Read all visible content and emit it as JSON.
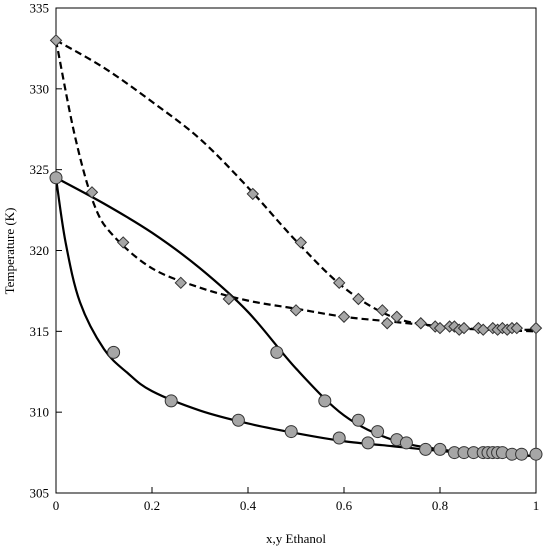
{
  "chart_data": {
    "type": "line",
    "title": "",
    "xlabel": "x,y Ethanol",
    "ylabel": "Temperature (K)",
    "xlim": [
      0,
      1
    ],
    "ylim": [
      305,
      335
    ],
    "x_ticks": [
      0,
      0.2,
      0.4,
      0.6,
      0.8,
      1
    ],
    "x_tick_labels": [
      "0",
      "0.2",
      "0.4",
      "0.6",
      "0.8",
      "1"
    ],
    "y_ticks": [
      305,
      310,
      315,
      320,
      325,
      330,
      335
    ],
    "y_tick_labels": [
      "305",
      "310",
      "315",
      "320",
      "325",
      "330",
      "335"
    ],
    "grid": false,
    "legend": "none",
    "series": [
      {
        "kind": "points",
        "marker": "diamond",
        "color": "#a6a6a6",
        "points": [
          [
            0.0,
            333.0
          ],
          [
            0.075,
            323.6
          ],
          [
            0.14,
            320.5
          ],
          [
            0.26,
            318.0
          ],
          [
            0.36,
            317.0
          ],
          [
            0.41,
            323.5
          ],
          [
            0.5,
            316.3
          ],
          [
            0.51,
            320.5
          ],
          [
            0.59,
            318.0
          ],
          [
            0.6,
            315.9
          ],
          [
            0.63,
            317.0
          ],
          [
            0.68,
            316.3
          ],
          [
            0.69,
            315.5
          ],
          [
            0.71,
            315.9
          ],
          [
            0.76,
            315.5
          ],
          [
            0.79,
            315.3
          ],
          [
            0.8,
            315.2
          ],
          [
            0.82,
            315.3
          ],
          [
            0.83,
            315.3
          ],
          [
            0.84,
            315.1
          ],
          [
            0.85,
            315.2
          ],
          [
            0.88,
            315.2
          ],
          [
            0.89,
            315.1
          ],
          [
            0.91,
            315.2
          ],
          [
            0.92,
            315.1
          ],
          [
            0.93,
            315.2
          ],
          [
            0.94,
            315.1
          ],
          [
            0.95,
            315.2
          ],
          [
            0.96,
            315.2
          ],
          [
            1.0,
            315.2
          ]
        ]
      },
      {
        "kind": "points",
        "marker": "circle",
        "color": "#a6a6a6",
        "points": [
          [
            0.0,
            324.5
          ],
          [
            0.12,
            313.7
          ],
          [
            0.24,
            310.7
          ],
          [
            0.38,
            309.5
          ],
          [
            0.46,
            313.7
          ],
          [
            0.49,
            308.8
          ],
          [
            0.56,
            310.7
          ],
          [
            0.59,
            308.4
          ],
          [
            0.63,
            309.5
          ],
          [
            0.65,
            308.1
          ],
          [
            0.67,
            308.8
          ],
          [
            0.71,
            308.3
          ],
          [
            0.73,
            308.1
          ],
          [
            0.77,
            307.7
          ],
          [
            0.8,
            307.7
          ],
          [
            0.83,
            307.5
          ],
          [
            0.85,
            307.5
          ],
          [
            0.87,
            307.5
          ],
          [
            0.89,
            307.5
          ],
          [
            0.9,
            307.5
          ],
          [
            0.91,
            307.5
          ],
          [
            0.92,
            307.5
          ],
          [
            0.93,
            307.5
          ],
          [
            0.95,
            307.4
          ],
          [
            0.97,
            307.4
          ],
          [
            1.0,
            307.4
          ]
        ]
      },
      {
        "kind": "line",
        "style": "dashed",
        "color": "#000000",
        "points": [
          [
            0.0,
            333.0
          ],
          [
            0.1,
            331.3
          ],
          [
            0.2,
            329.2
          ],
          [
            0.3,
            326.9
          ],
          [
            0.4,
            323.9
          ],
          [
            0.5,
            320.6
          ],
          [
            0.6,
            317.7
          ],
          [
            0.7,
            315.9
          ],
          [
            0.8,
            315.3
          ],
          [
            0.9,
            315.1
          ],
          [
            1.0,
            315.1
          ]
        ]
      },
      {
        "kind": "line",
        "style": "dashed",
        "color": "#000000",
        "points": [
          [
            0.0,
            333.0
          ],
          [
            0.04,
            327.0
          ],
          [
            0.08,
            322.8
          ],
          [
            0.12,
            320.9
          ],
          [
            0.2,
            318.9
          ],
          [
            0.3,
            317.7
          ],
          [
            0.4,
            316.9
          ],
          [
            0.5,
            316.4
          ],
          [
            0.6,
            315.9
          ],
          [
            0.7,
            315.6
          ],
          [
            0.8,
            315.3
          ],
          [
            0.9,
            315.1
          ],
          [
            1.0,
            315.0
          ]
        ]
      },
      {
        "kind": "line",
        "style": "solid",
        "color": "#000000",
        "points": [
          [
            0.0,
            324.5
          ],
          [
            0.1,
            322.9
          ],
          [
            0.2,
            321.1
          ],
          [
            0.3,
            318.9
          ],
          [
            0.4,
            316.2
          ],
          [
            0.5,
            312.7
          ],
          [
            0.6,
            309.8
          ],
          [
            0.7,
            308.3
          ],
          [
            0.8,
            307.7
          ],
          [
            0.9,
            307.4
          ],
          [
            1.0,
            307.3
          ]
        ]
      },
      {
        "kind": "line",
        "style": "solid",
        "color": "#000000",
        "points": [
          [
            0.0,
            324.5
          ],
          [
            0.02,
            320.5
          ],
          [
            0.05,
            316.8
          ],
          [
            0.1,
            313.9
          ],
          [
            0.15,
            312.4
          ],
          [
            0.2,
            311.3
          ],
          [
            0.3,
            310.1
          ],
          [
            0.4,
            309.3
          ],
          [
            0.5,
            308.7
          ],
          [
            0.6,
            308.2
          ],
          [
            0.7,
            307.9
          ],
          [
            0.8,
            307.6
          ],
          [
            0.9,
            307.4
          ],
          [
            1.0,
            307.3
          ]
        ]
      }
    ]
  }
}
